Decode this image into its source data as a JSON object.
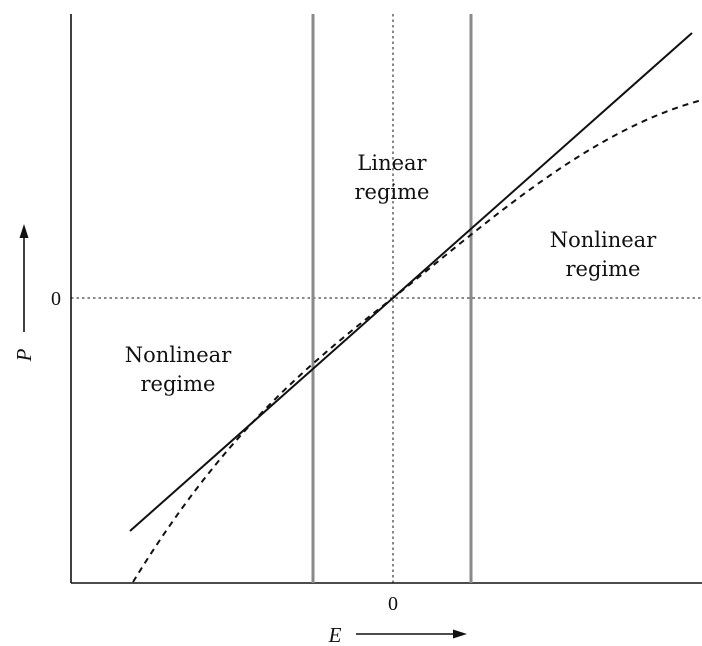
{
  "axes": {
    "x_symbol": "E",
    "y_symbol": "P",
    "x_zero_label": "0",
    "y_zero_label": "0"
  },
  "regions": {
    "linear": {
      "line1": "Linear",
      "line2": "regime"
    },
    "nonlinear_right": {
      "line1": "Nonlinear",
      "line2": "regime"
    },
    "nonlinear_left": {
      "line1": "Nonlinear",
      "line2": "regime"
    }
  },
  "colors": {
    "ink": "#111111",
    "boundary": "#8a8a8a"
  }
}
